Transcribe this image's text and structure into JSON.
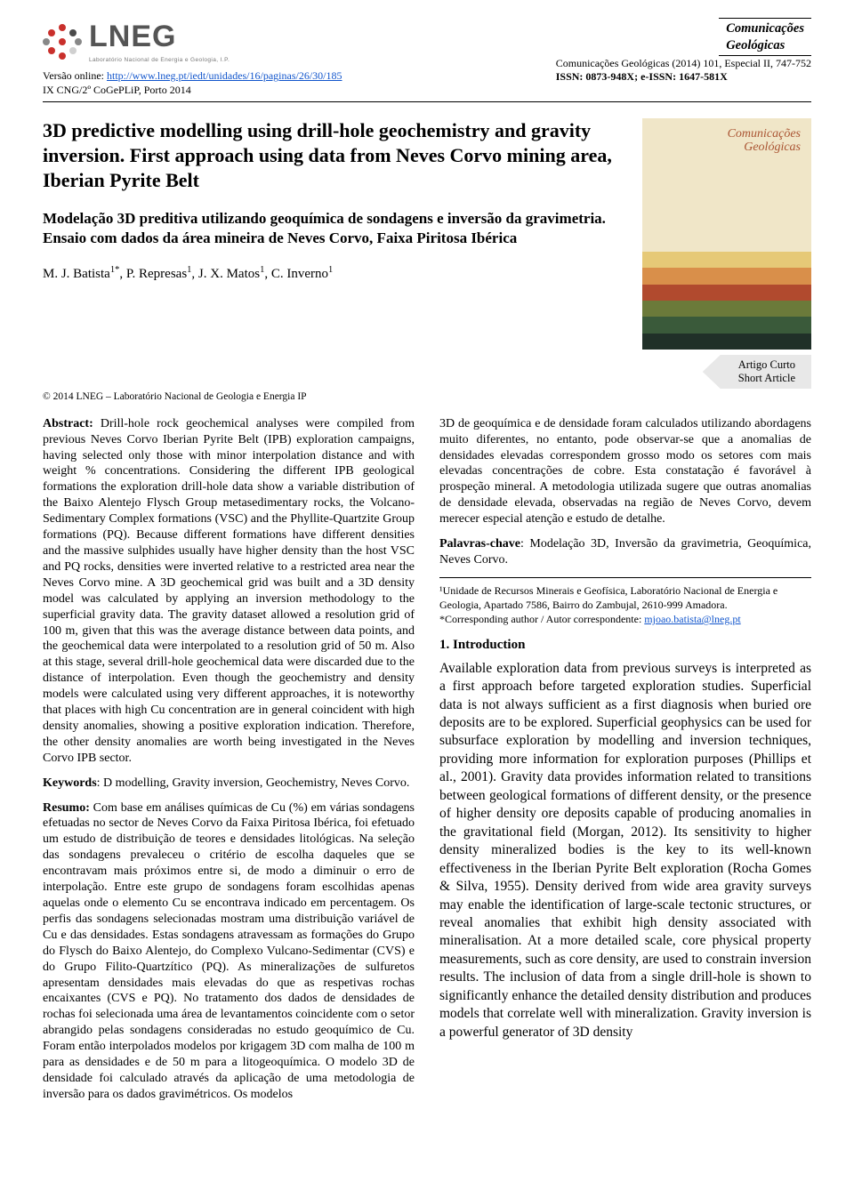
{
  "header": {
    "logo_text": "LNEG",
    "logo_sub": "Laboratório Nacional de Energia e Geologia, I.P.",
    "logo_dot_colors": [
      "#c9302c",
      "#c9302c",
      "#4a4a4a",
      "#888",
      "#c9302c",
      "#888",
      "#c9302c",
      "#d0d0d0",
      "#c9302c"
    ],
    "left_line1_a": "Versão online: ",
    "left_line1_link": "http://www.lneg.pt/iedt/unidades/16/paginas/26/30/185",
    "left_line2": "IX CNG/2º CoGePLiP, Porto 2014",
    "right_box_line1": "Comunicações",
    "right_box_line2": "Geológicas",
    "right_line1": "Comunicações Geológicas (2014) 101, Especial II, 747-752",
    "right_line2": "ISSN: 0873-948X; e-ISSN: 1647-581X"
  },
  "title": {
    "en": "3D predictive modelling using drill-hole geochemistry and gravity inversion. First approach using data from Neves Corvo mining area, Iberian Pyrite Belt",
    "pt": "Modelação 3D preditiva utilizando geoquímica de sondagens e inversão da gravimetria. Ensaio com dados da área mineira de Neves Corvo, Faixa Piritosa Ibérica",
    "authors_html": "M. J. Batista<sup>1*</sup>, P. Represas<sup>1</sup>, J. X. Matos<sup>1</sup>, C. Inverno<sup>1</sup>",
    "cover_text1": "Comunicações",
    "cover_text2": "Geológicas",
    "cover_colors": [
      "#f0e6c8",
      "#e6c977",
      "#d98f4a",
      "#b14a2e",
      "#6b7a3a",
      "#3a5a3a",
      "#203028"
    ]
  },
  "tag": {
    "line1": "Artigo Curto",
    "line2": "Short Article"
  },
  "copyright": "© 2014 LNEG – Laboratório Nacional de Geologia e Energia IP",
  "abstract": {
    "label": "Abstract:",
    "text": " Drill-hole rock geochemical analyses were compiled from previous Neves Corvo Iberian Pyrite Belt (IPB) exploration campaigns, having selected only those with minor interpolation distance and with weight % concentrations. Considering the different IPB geological formations the exploration drill-hole data show a variable distribution of the Baixo Alentejo Flysch Group metasedimentary rocks, the Volcano-Sedimentary Complex formations (VSC) and the Phyllite-Quartzite Group formations (PQ). Because different formations have different densities and the massive sulphides usually have higher density than the host VSC and PQ rocks, densities were inverted relative to a restricted area near the Neves Corvo mine. A 3D geochemical grid was built and a 3D density model was calculated by applying an inversion methodology to the superficial gravity data. The gravity dataset allowed a resolution grid of 100 m, given that this was the average distance between data points, and the geochemical data were interpolated to a resolution grid of 50 m. Also at this stage, several drill-hole geochemical data were discarded due to the distance of interpolation. Even though the geochemistry and density models were calculated using very different approaches, it is noteworthy that places with high Cu concentration are in general coincident with high density anomalies, showing a positive exploration indication. Therefore, the other density anomalies are worth being investigated in the Neves Corvo IPB sector."
  },
  "keywords": {
    "label": "Keywords",
    "text": ": D modelling, Gravity inversion, Geochemistry, Neves Corvo."
  },
  "resumo": {
    "label": "Resumo:",
    "text": " Com base em análises químicas de Cu (%) em várias sondagens efetuadas no sector de Neves Corvo da Faixa Piritosa Ibérica, foi efetuado um estudo de distribuição de teores e densidades litológicas. Na seleção das sondagens prevaleceu o critério de escolha daqueles que se encontravam mais próximos entre si, de modo a diminuir o erro de interpolação. Entre este grupo de sondagens foram escolhidas apenas aquelas onde o elemento Cu se encontrava indicado em percentagem. Os perfis das sondagens selecionadas mostram uma distribuição variável de Cu e das densidades. Estas sondagens atravessam as formações do Grupo do Flysch do Baixo Alentejo, do Complexo Vulcano-Sedimentar (CVS) e do Grupo Filito-Quartzítico (PQ). As mineralizações de sulfuretos apresentam densidades mais elevadas do que as respetivas rochas encaixantes (CVS e PQ). No tratamento dos dados de densidades de rochas foi selecionada uma área de levantamentos coincidente com o setor abrangido pelas sondagens consideradas no estudo geoquímico de Cu. Foram então interpolados modelos por krigagem 3D com malha de 100 m para as densidades e de 50 m para a litogeoquímica. O modelo 3D de densidade foi calculado através da aplicação de uma metodologia de inversão para os dados gravimétricos. Os modelos"
  },
  "right_col": {
    "para1": "3D de geoquímica e de densidade foram calculados utilizando abordagens muito diferentes, no entanto, pode observar-se que a anomalias de densidades elevadas correspondem grosso modo os setores com mais elevadas concentrações de cobre. Esta constatação é favorável à prospeção mineral. A metodologia utilizada sugere que outras anomalias de densidade elevada, observadas na região de Neves Corvo, devem merecer especial atenção e estudo de detalhe.",
    "palavras_label": "Palavras-chave",
    "palavras_text": ": Modelação 3D, Inversão da gravimetria, Geoquímica, Neves Corvo.",
    "affil1": "¹Unidade de Recursos Minerais e Geofísica, Laboratório Nacional de Energia e Geologia, Apartado 7586, Bairro do Zambujal, 2610-999 Amadora.",
    "affil2_a": "*Corresponding author / Autor correspondente: ",
    "affil2_link": "mjoao.batista@lneg.pt",
    "section_heading": "1. Introduction",
    "intro": "Available exploration data from previous surveys is interpreted as a first approach before targeted exploration studies. Superficial data is not always sufficient as a first diagnosis when buried ore deposits are to be explored. Superficial geophysics can be used for subsurface exploration by modelling and inversion techniques, providing more information for exploration purposes (Phillips et al., 2001). Gravity data provides information related to transitions between geological formations of different density, or the presence of higher density ore deposits capable of producing anomalies in the gravitational field (Morgan, 2012). Its sensitivity to higher density mineralized bodies is the key to its well-known effectiveness in the Iberian Pyrite Belt exploration (Rocha Gomes & Silva, 1955). Density derived from wide area gravity surveys may enable the identification of large-scale tectonic structures, or reveal anomalies that exhibit high density associated with mineralisation. At a more detailed scale, core physical property measurements, such as core density, are used to constrain inversion results. The inclusion of data from a single drill-hole is shown to significantly enhance the detailed density distribution and produces models that correlate well with mineralization. Gravity inversion is a powerful generator of 3D density"
  }
}
